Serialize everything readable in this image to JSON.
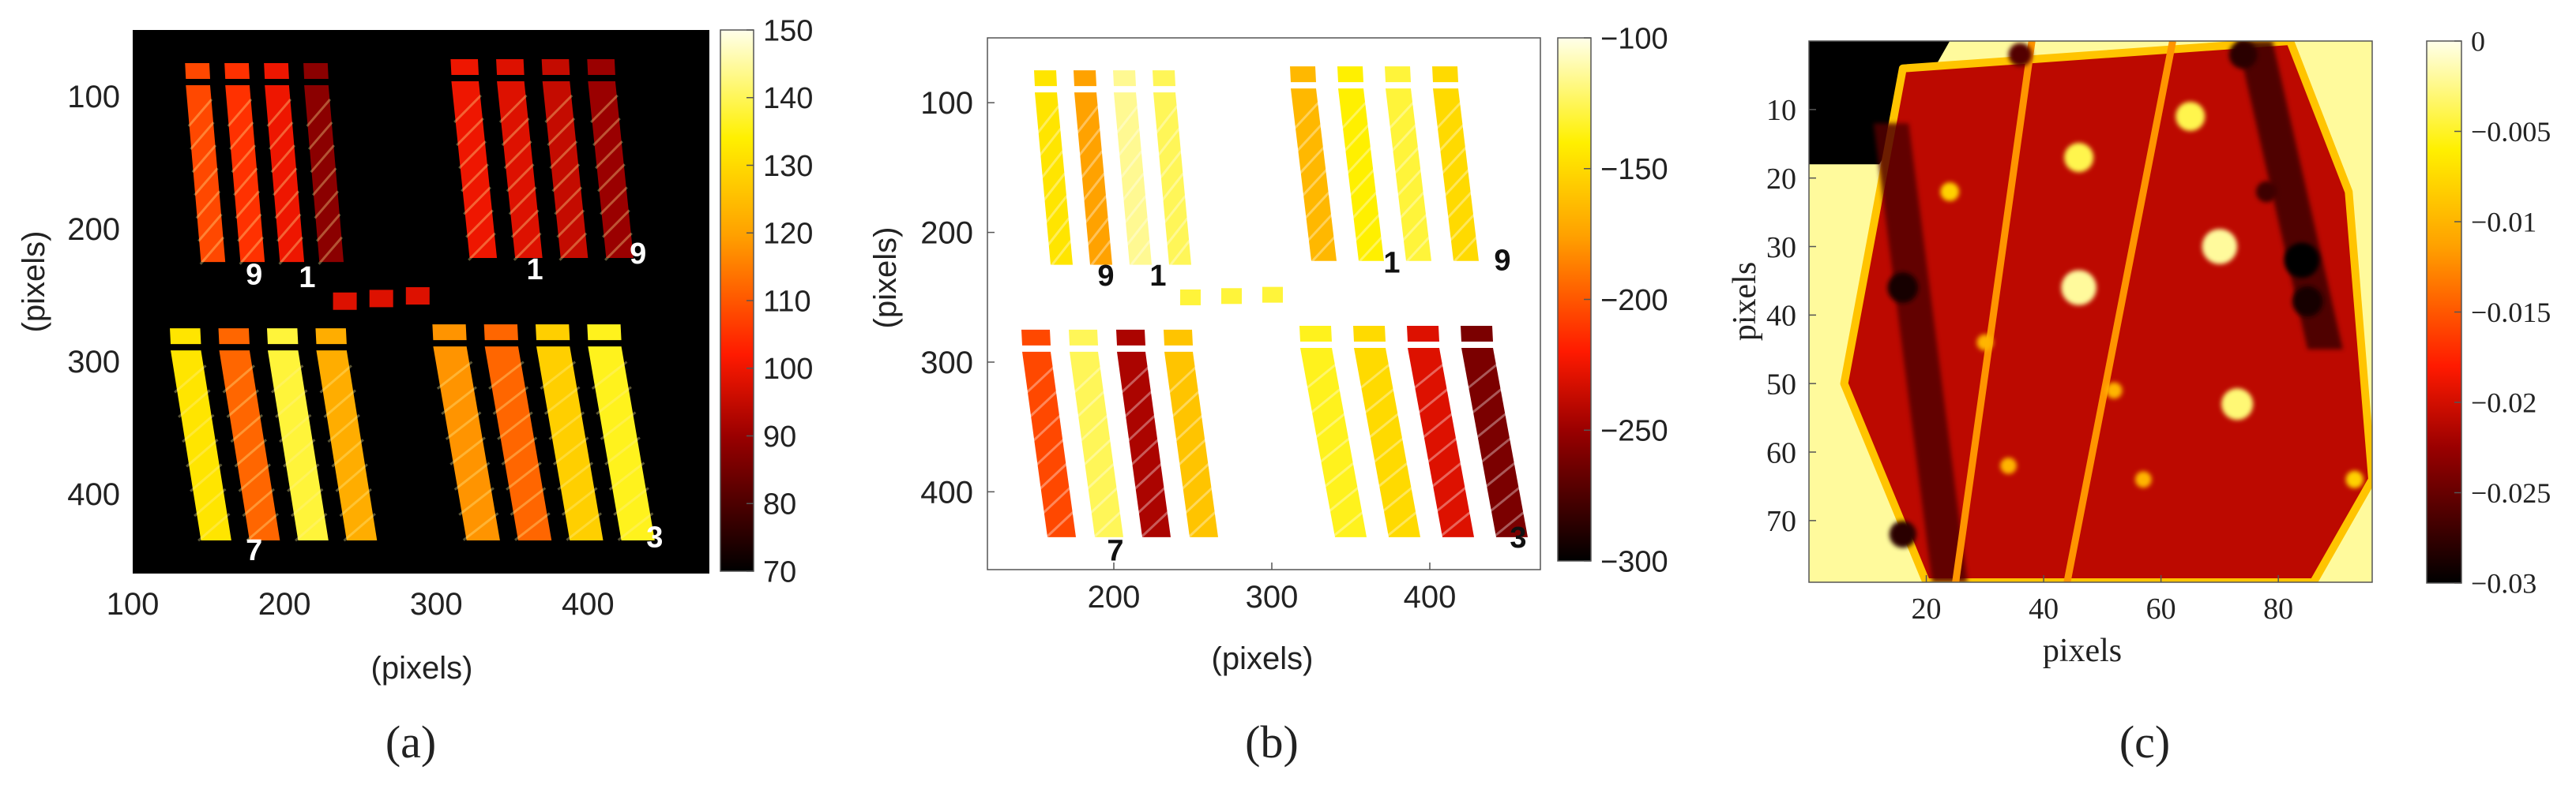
{
  "chart_data": [
    {
      "type": "heatmap",
      "panel_label": "(a)",
      "xlabel": "(pixels)",
      "ylabel": "(pixels)",
      "xlim": [
        100,
        480
      ],
      "ylim": [
        460,
        50
      ],
      "x_ticks": [
        100,
        200,
        300,
        400
      ],
      "y_ticks": [
        100,
        200,
        300,
        400
      ],
      "colorbar": {
        "min": 70,
        "max": 150,
        "ticks": [
          150,
          140,
          130,
          120,
          110,
          100,
          90,
          80,
          70
        ]
      },
      "background_value": 70,
      "strip_groups": [
        {
          "x_top": 135,
          "x_bottom": 145,
          "y_top": 75,
          "y_bottom": 225,
          "count": 4,
          "spacing": 26,
          "strip_width": 16,
          "values": [
            108,
            105,
            100,
            88
          ]
        },
        {
          "x_top": 310,
          "x_bottom": 322,
          "y_top": 72,
          "y_bottom": 222,
          "count": 4,
          "spacing": 30,
          "strip_width": 18,
          "values": [
            100,
            98,
            95,
            90
          ]
        },
        {
          "x_top": 125,
          "x_bottom": 145,
          "y_top": 275,
          "y_bottom": 435,
          "count": 4,
          "spacing": 32,
          "strip_width": 20,
          "values": [
            132,
            112,
            138,
            122
          ]
        },
        {
          "x_top": 298,
          "x_bottom": 320,
          "y_top": 272,
          "y_bottom": 435,
          "count": 4,
          "spacing": 34,
          "strip_width": 22,
          "values": [
            118,
            112,
            128,
            136
          ]
        }
      ],
      "annotations": [
        {
          "text": "9",
          "x": 180,
          "y": 242
        },
        {
          "text": "1",
          "x": 215,
          "y": 244
        },
        {
          "text": "1",
          "x": 365,
          "y": 238
        },
        {
          "text": "9",
          "x": 433,
          "y": 226
        },
        {
          "text": "7",
          "x": 180,
          "y": 450
        },
        {
          "text": "3",
          "x": 444,
          "y": 440
        }
      ]
    },
    {
      "type": "heatmap",
      "panel_label": "(b)",
      "xlabel": "(pixels)",
      "ylabel": "(pixels)",
      "xlim": [
        120,
        470
      ],
      "ylim": [
        460,
        50
      ],
      "x_ticks": [
        200,
        300,
        400
      ],
      "y_ticks": [
        100,
        200,
        300,
        400
      ],
      "colorbar": {
        "min": -300,
        "max": -100,
        "ticks": [
          -100,
          -150,
          -200,
          -250,
          -300
        ]
      },
      "background_value": -100,
      "strip_groups": [
        {
          "x_top": 150,
          "x_bottom": 160,
          "y_top": 75,
          "y_bottom": 225,
          "count": 4,
          "spacing": 25,
          "strip_width": 14,
          "values": [
            -145,
            -175,
            -115,
            -125
          ]
        },
        {
          "x_top": 312,
          "x_bottom": 325,
          "y_top": 72,
          "y_bottom": 222,
          "count": 4,
          "spacing": 30,
          "strip_width": 16,
          "values": [
            -165,
            -140,
            -130,
            -150
          ]
        },
        {
          "x_top": 142,
          "x_bottom": 158,
          "y_top": 275,
          "y_bottom": 435,
          "count": 4,
          "spacing": 30,
          "strip_width": 18,
          "values": [
            -205,
            -125,
            -245,
            -160
          ]
        },
        {
          "x_top": 318,
          "x_bottom": 340,
          "y_top": 272,
          "y_bottom": 435,
          "count": 4,
          "spacing": 34,
          "strip_width": 20,
          "values": [
            -135,
            -150,
            -230,
            -260
          ]
        }
      ],
      "annotations": [
        {
          "text": "9",
          "x": 195,
          "y": 241
        },
        {
          "text": "1",
          "x": 228,
          "y": 241
        },
        {
          "text": "1",
          "x": 376,
          "y": 231
        },
        {
          "text": "9",
          "x": 446,
          "y": 229
        },
        {
          "text": "7",
          "x": 201,
          "y": 453
        },
        {
          "text": "3",
          "x": 456,
          "y": 443
        }
      ]
    },
    {
      "type": "heatmap",
      "panel_label": "(c)",
      "xlabel": "pixels",
      "ylabel": "pixels",
      "xlim": [
        0,
        96
      ],
      "ylim": [
        79,
        0
      ],
      "x_ticks": [
        20,
        40,
        60,
        80
      ],
      "y_ticks": [
        10,
        20,
        30,
        40,
        50,
        60,
        70
      ],
      "colorbar": {
        "min": -0.03,
        "max": 0,
        "ticks": [
          0,
          -0.005,
          -0.01,
          -0.015,
          -0.02,
          -0.025,
          -0.03
        ]
      },
      "background_value": -0.002,
      "region_polygon": [
        [
          16,
          4
        ],
        [
          82,
          0
        ],
        [
          92,
          22
        ],
        [
          96,
          64
        ],
        [
          86,
          79
        ],
        [
          20,
          79
        ],
        [
          6,
          50
        ]
      ],
      "region_value": -0.021,
      "corner_region": {
        "polygon": [
          [
            0,
            0
          ],
          [
            24,
            0
          ],
          [
            12,
            18
          ],
          [
            0,
            18
          ]
        ],
        "value": -0.03
      },
      "streak_lines": [
        {
          "x_top": 38,
          "x_bottom": 25,
          "y_top": 0,
          "y_bottom": 79,
          "value": -0.012
        },
        {
          "x_top": 62,
          "x_bottom": 44,
          "y_top": 0,
          "y_bottom": 79,
          "value": -0.012
        }
      ],
      "dark_bands": [
        {
          "x_top": 14,
          "x_bottom": 24,
          "y_top": 12,
          "y_bottom": 79,
          "value": -0.026
        },
        {
          "x_top": 76,
          "x_bottom": 88,
          "y_top": 0,
          "y_bottom": 45,
          "value": -0.027
        }
      ],
      "hot_spots": [
        {
          "x": 24,
          "y": 22,
          "r": 1.6,
          "value": -0.008
        },
        {
          "x": 46,
          "y": 17,
          "r": 2.5,
          "value": -0.004
        },
        {
          "x": 65,
          "y": 11,
          "r": 2.5,
          "value": -0.004
        },
        {
          "x": 70,
          "y": 30,
          "r": 3,
          "value": -0.002
        },
        {
          "x": 46,
          "y": 36,
          "r": 3,
          "value": -0.002
        },
        {
          "x": 73,
          "y": 53,
          "r": 2.7,
          "value": -0.003
        },
        {
          "x": 30,
          "y": 44,
          "r": 1.4,
          "value": -0.01
        },
        {
          "x": 34,
          "y": 62,
          "r": 1.4,
          "value": -0.01
        },
        {
          "x": 52,
          "y": 51,
          "r": 1.4,
          "value": -0.01
        },
        {
          "x": 57,
          "y": 64,
          "r": 1.4,
          "value": -0.01
        },
        {
          "x": 93,
          "y": 64,
          "r": 1.5,
          "value": -0.008
        }
      ],
      "dark_spots": [
        {
          "x": 16,
          "y": 36,
          "r": 2.6,
          "value": -0.029
        },
        {
          "x": 84,
          "y": 32,
          "r": 3,
          "value": -0.03
        },
        {
          "x": 85,
          "y": 38,
          "r": 2.6,
          "value": -0.029
        },
        {
          "x": 74,
          "y": 2,
          "r": 2.4,
          "value": -0.028
        },
        {
          "x": 16,
          "y": 72,
          "r": 2.3,
          "value": -0.028
        },
        {
          "x": 78,
          "y": 22,
          "r": 1.8,
          "value": -0.027
        },
        {
          "x": 36,
          "y": 2,
          "r": 2,
          "value": -0.026
        }
      ]
    }
  ]
}
